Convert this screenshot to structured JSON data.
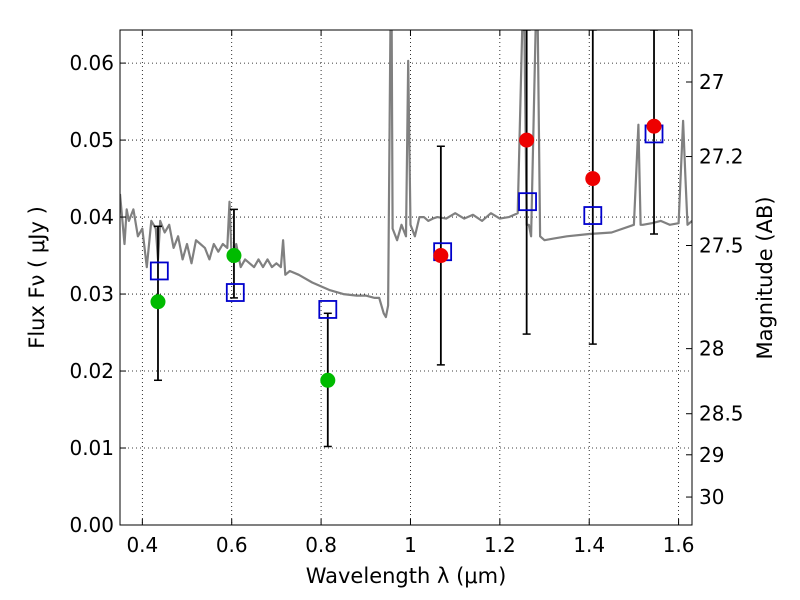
{
  "chart_data": {
    "type": "scatter",
    "title": "",
    "xlabel": "Wavelength  λ (μm)",
    "ylabel": "Flux  Fν  ( μJy )",
    "ylabel_right": "Magnitude (AB)",
    "xlim": [
      0.35,
      1.63
    ],
    "ylim": [
      0.0,
      0.0643
    ],
    "grid": true,
    "x_ticks": [
      {
        "value": 0.4,
        "label": "0.4"
      },
      {
        "value": 0.6,
        "label": "0.6"
      },
      {
        "value": 0.8,
        "label": "0.8"
      },
      {
        "value": 1.0,
        "label": "1"
      },
      {
        "value": 1.2,
        "label": "1.2"
      },
      {
        "value": 1.4,
        "label": "1.4"
      },
      {
        "value": 1.6,
        "label": "1.6"
      }
    ],
    "y_ticks": [
      {
        "value": 0.0,
        "label": "0.00"
      },
      {
        "value": 0.01,
        "label": "0.01"
      },
      {
        "value": 0.02,
        "label": "0.02"
      },
      {
        "value": 0.03,
        "label": "0.03"
      },
      {
        "value": 0.04,
        "label": "0.04"
      },
      {
        "value": 0.05,
        "label": "0.05"
      },
      {
        "value": 0.06,
        "label": "0.06"
      }
    ],
    "y2_ticks": [
      {
        "value": 27.0,
        "label": "27"
      },
      {
        "value": 27.2,
        "label": "27.2"
      },
      {
        "value": 27.5,
        "label": "27.5"
      },
      {
        "value": 28.0,
        "label": "28"
      },
      {
        "value": 28.5,
        "label": "28.5"
      },
      {
        "value": 29.0,
        "label": "29"
      },
      {
        "value": 30.0,
        "label": "30"
      }
    ],
    "series": [
      {
        "marker": "line",
        "color": "#808080",
        "x": [
          0.35,
          0.36,
          0.365,
          0.37,
          0.38,
          0.39,
          0.4,
          0.41,
          0.42,
          0.43,
          0.435,
          0.44,
          0.45,
          0.46,
          0.47,
          0.48,
          0.49,
          0.5,
          0.51,
          0.52,
          0.53,
          0.54,
          0.55,
          0.56,
          0.57,
          0.58,
          0.59,
          0.595,
          0.6,
          0.61,
          0.62,
          0.63,
          0.64,
          0.65,
          0.66,
          0.67,
          0.68,
          0.69,
          0.7,
          0.71,
          0.715,
          0.72,
          0.73,
          0.75,
          0.78,
          0.8,
          0.82,
          0.85,
          0.88,
          0.9,
          0.92,
          0.93,
          0.94,
          0.945,
          0.95,
          0.955,
          0.958,
          0.96,
          0.97,
          0.98,
          0.99,
          0.995,
          1.0,
          1.01,
          1.02,
          1.03,
          1.04,
          1.05,
          1.06,
          1.08,
          1.1,
          1.12,
          1.14,
          1.16,
          1.18,
          1.2,
          1.22,
          1.24,
          1.25,
          1.255,
          1.26,
          1.265,
          1.27,
          1.28,
          1.285,
          1.29,
          1.3,
          1.32,
          1.35,
          1.4,
          1.45,
          1.5,
          1.51,
          1.515,
          1.52,
          1.54,
          1.56,
          1.58,
          1.6,
          1.61,
          1.615,
          1.62,
          1.63
        ],
        "y": [
          0.043,
          0.0365,
          0.041,
          0.0395,
          0.041,
          0.0375,
          0.0385,
          0.0335,
          0.0395,
          0.0385,
          0.0345,
          0.0395,
          0.038,
          0.039,
          0.036,
          0.0375,
          0.0345,
          0.0365,
          0.034,
          0.037,
          0.0365,
          0.036,
          0.0345,
          0.0365,
          0.0355,
          0.0365,
          0.036,
          0.042,
          0.0345,
          0.0365,
          0.0335,
          0.0345,
          0.034,
          0.0335,
          0.0345,
          0.0335,
          0.0345,
          0.0335,
          0.034,
          0.0335,
          0.037,
          0.0325,
          0.033,
          0.0325,
          0.0315,
          0.031,
          0.0305,
          0.03,
          0.0298,
          0.0298,
          0.0295,
          0.0295,
          0.0275,
          0.027,
          0.0285,
          0.0643,
          0.0643,
          0.0385,
          0.037,
          0.039,
          0.0375,
          0.0603,
          0.039,
          0.0375,
          0.04,
          0.04,
          0.0395,
          0.0398,
          0.04,
          0.0398,
          0.0405,
          0.0398,
          0.0403,
          0.0395,
          0.0405,
          0.0398,
          0.04,
          0.0405,
          0.0643,
          0.0643,
          0.039,
          0.039,
          0.0375,
          0.0643,
          0.0643,
          0.0375,
          0.037,
          0.0372,
          0.0375,
          0.0378,
          0.038,
          0.039,
          0.052,
          0.039,
          0.039,
          0.0392,
          0.0395,
          0.039,
          0.0392,
          0.0525,
          0.0455,
          0.039,
          0.0395
        ]
      },
      {
        "marker": "open-square",
        "color": "#0000cc",
        "x": [
          0.438,
          0.608,
          0.815,
          1.072,
          1.262,
          1.408,
          1.545
        ],
        "y": [
          0.033,
          0.0302,
          0.028,
          0.0355,
          0.042,
          0.0402,
          0.0508
        ]
      },
      {
        "marker": "filled-circle",
        "color": "#00bb00",
        "x": [
          0.435,
          0.605,
          0.815
        ],
        "y": [
          0.029,
          0.035,
          0.0188
        ]
      },
      {
        "marker": "filled-circle",
        "color": "#ee0000",
        "x": [
          1.068,
          1.26,
          1.408,
          1.545
        ],
        "y": [
          0.035,
          0.05,
          0.045,
          0.0518
        ]
      },
      {
        "marker": "errorbar",
        "color": "#000000",
        "x": [
          0.435,
          0.605,
          0.815,
          1.068,
          1.26,
          1.408,
          1.545
        ],
        "y": [
          0.029,
          0.035,
          0.0188,
          0.035,
          0.05,
          0.045,
          0.0518
        ],
        "ylow": [
          0.0188,
          0.0295,
          0.0102,
          0.0208,
          0.0248,
          0.0235,
          0.0378
        ],
        "yhigh": [
          0.0388,
          0.041,
          0.0275,
          0.0492,
          0.0643,
          0.0643,
          0.0643
        ]
      }
    ]
  }
}
